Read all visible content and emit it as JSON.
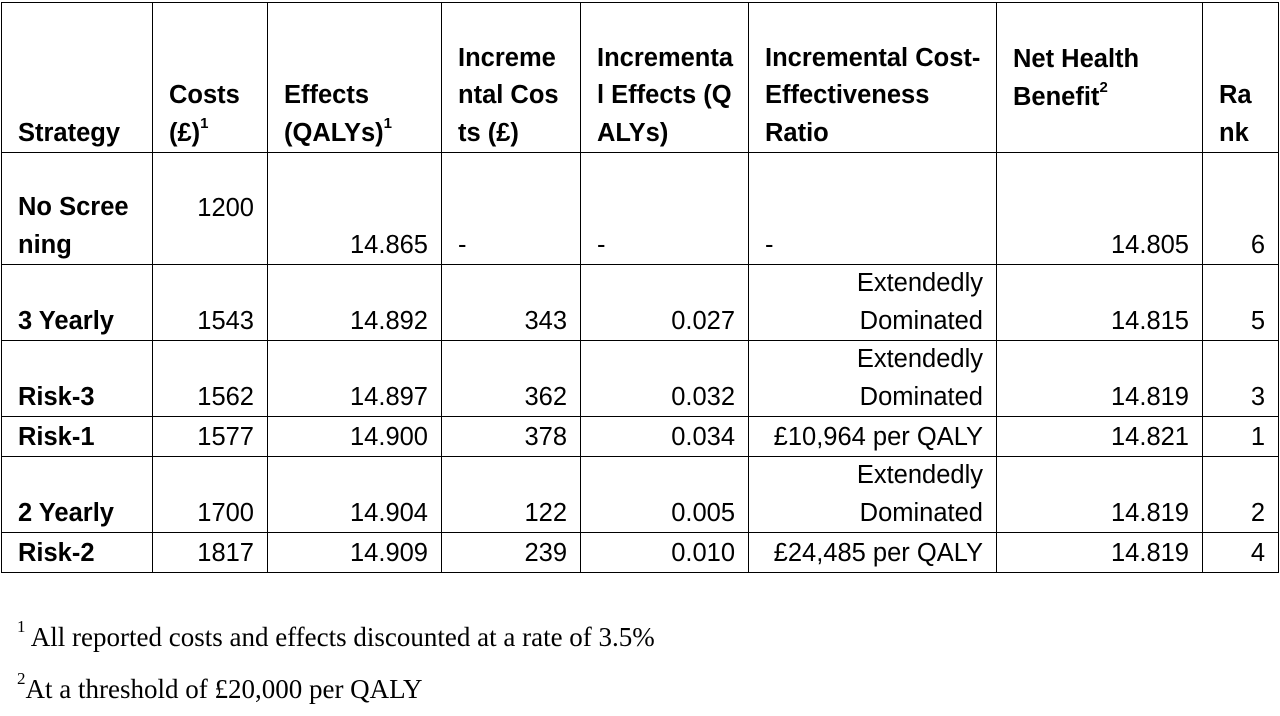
{
  "headers": {
    "strategy": "Strategy",
    "costs": "Costs (£)",
    "costs_sup": "1",
    "effects": "Effects (QALYs)",
    "effects_sup": "1",
    "inc_costs": "Incremental Costs (£)",
    "inc_effects": "Incremental Effects (QALYs)",
    "icer": "Incremental Cost-Effectiveness Ratio",
    "nhb": "Net Health Benefit",
    "nhb_sup": "2",
    "rank": "Rank"
  },
  "rows": [
    {
      "strategy": "No Screening",
      "costs": "1200",
      "effects": "14.865",
      "inc_costs": "-",
      "inc_effects": "-",
      "icer": "-",
      "nhb": "14.805",
      "rank": "6"
    },
    {
      "strategy": "3 Yearly",
      "costs": "1543",
      "effects": "14.892",
      "inc_costs": "343",
      "inc_effects": "0.027",
      "icer": "Extendedly Dominated",
      "nhb": "14.815",
      "rank": "5"
    },
    {
      "strategy": "Risk-3",
      "costs": "1562",
      "effects": "14.897",
      "inc_costs": "362",
      "inc_effects": "0.032",
      "icer": "Extendedly Dominated",
      "nhb": "14.819",
      "rank": "3"
    },
    {
      "strategy": "Risk-1",
      "costs": "1577",
      "effects": "14.900",
      "inc_costs": "378",
      "inc_effects": "0.034",
      "icer": "£10,964 per QALY",
      "nhb": "14.821",
      "rank": "1"
    },
    {
      "strategy": "2 Yearly",
      "costs": "1700",
      "effects": "14.904",
      "inc_costs": "122",
      "inc_effects": "0.005",
      "icer": "Extendedly Dominated",
      "nhb": "14.819",
      "rank": "2"
    },
    {
      "strategy": "Risk-2",
      "costs": "1817",
      "effects": "14.909",
      "inc_costs": "239",
      "inc_effects": "0.010",
      "icer": "£24,485 per QALY",
      "nhb": "14.819",
      "rank": "4"
    }
  ],
  "footnotes": [
    {
      "mark": "1",
      "text": " All reported costs and effects discounted at a rate of 3.5%"
    },
    {
      "mark": "2",
      "text": "At a threshold of £20,000 per QALY"
    }
  ]
}
